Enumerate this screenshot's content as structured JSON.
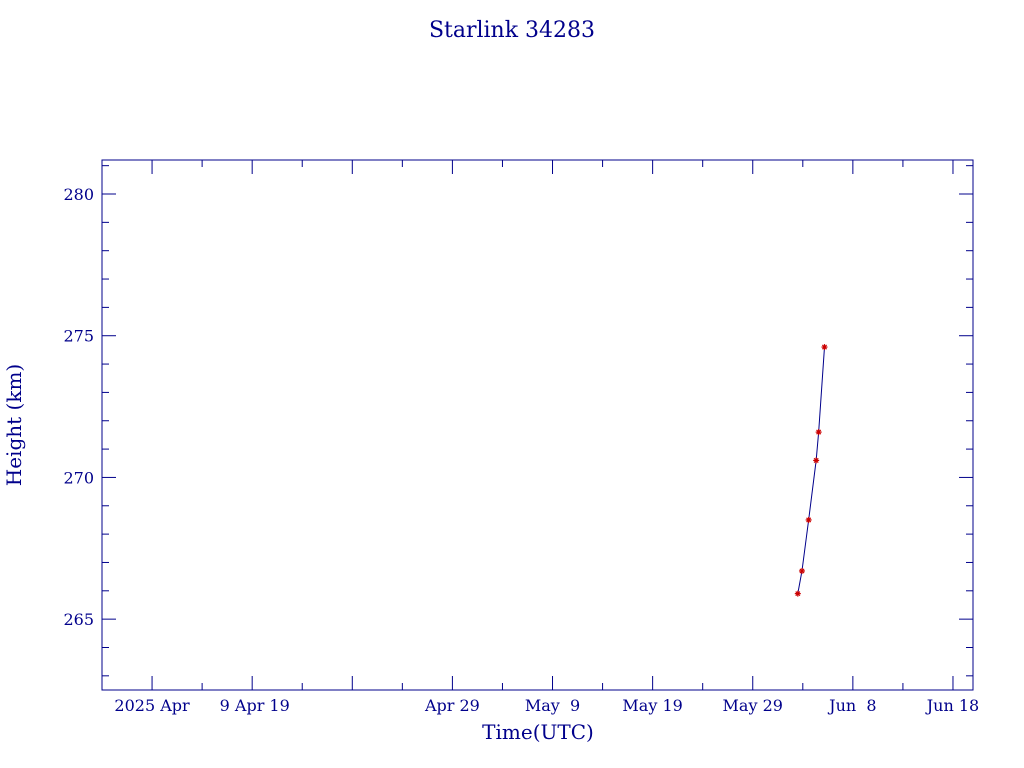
{
  "chart_data": {
    "type": "line",
    "title": "Starlink 34283",
    "xlabel": "Time(UTC)",
    "ylabel": "Height (km)",
    "x_axis": {
      "kind": "date",
      "range": [
        "2025-03-25",
        "2025-06-20"
      ],
      "major_ticks": [
        {
          "date": "2025-03-30",
          "label": "2025 Apr"
        },
        {
          "date": "2025-04-09",
          "label": " 9 Apr 19"
        },
        {
          "date": "2025-04-19",
          "label": ""
        },
        {
          "date": "2025-04-29",
          "label": "Apr 29"
        },
        {
          "date": "2025-05-09",
          "label": "May  9"
        },
        {
          "date": "2025-05-19",
          "label": "May 19"
        },
        {
          "date": "2025-05-29",
          "label": "May 29"
        },
        {
          "date": "2025-06-08",
          "label": "Jun  8"
        },
        {
          "date": "2025-06-18",
          "label": "Jun 18"
        }
      ]
    },
    "y_axis": {
      "range": [
        262.5,
        281.2
      ],
      "major_ticks": [
        265,
        270,
        275,
        280
      ],
      "minor_step": 1
    },
    "grid": false,
    "series": [
      {
        "color_line": "#00008b",
        "color_marker": "#cc0000",
        "marker": "asterisk",
        "points": [
          {
            "x": "2025-06-02T12:00",
            "y": 265.9
          },
          {
            "x": "2025-06-02T22:00",
            "y": 266.7
          },
          {
            "x": "2025-06-03T14:00",
            "y": 268.5
          },
          {
            "x": "2025-06-04T08:00",
            "y": 270.6
          },
          {
            "x": "2025-06-04T14:00",
            "y": 271.6
          },
          {
            "x": "2025-06-05T04:00",
            "y": 274.6
          }
        ]
      }
    ]
  }
}
